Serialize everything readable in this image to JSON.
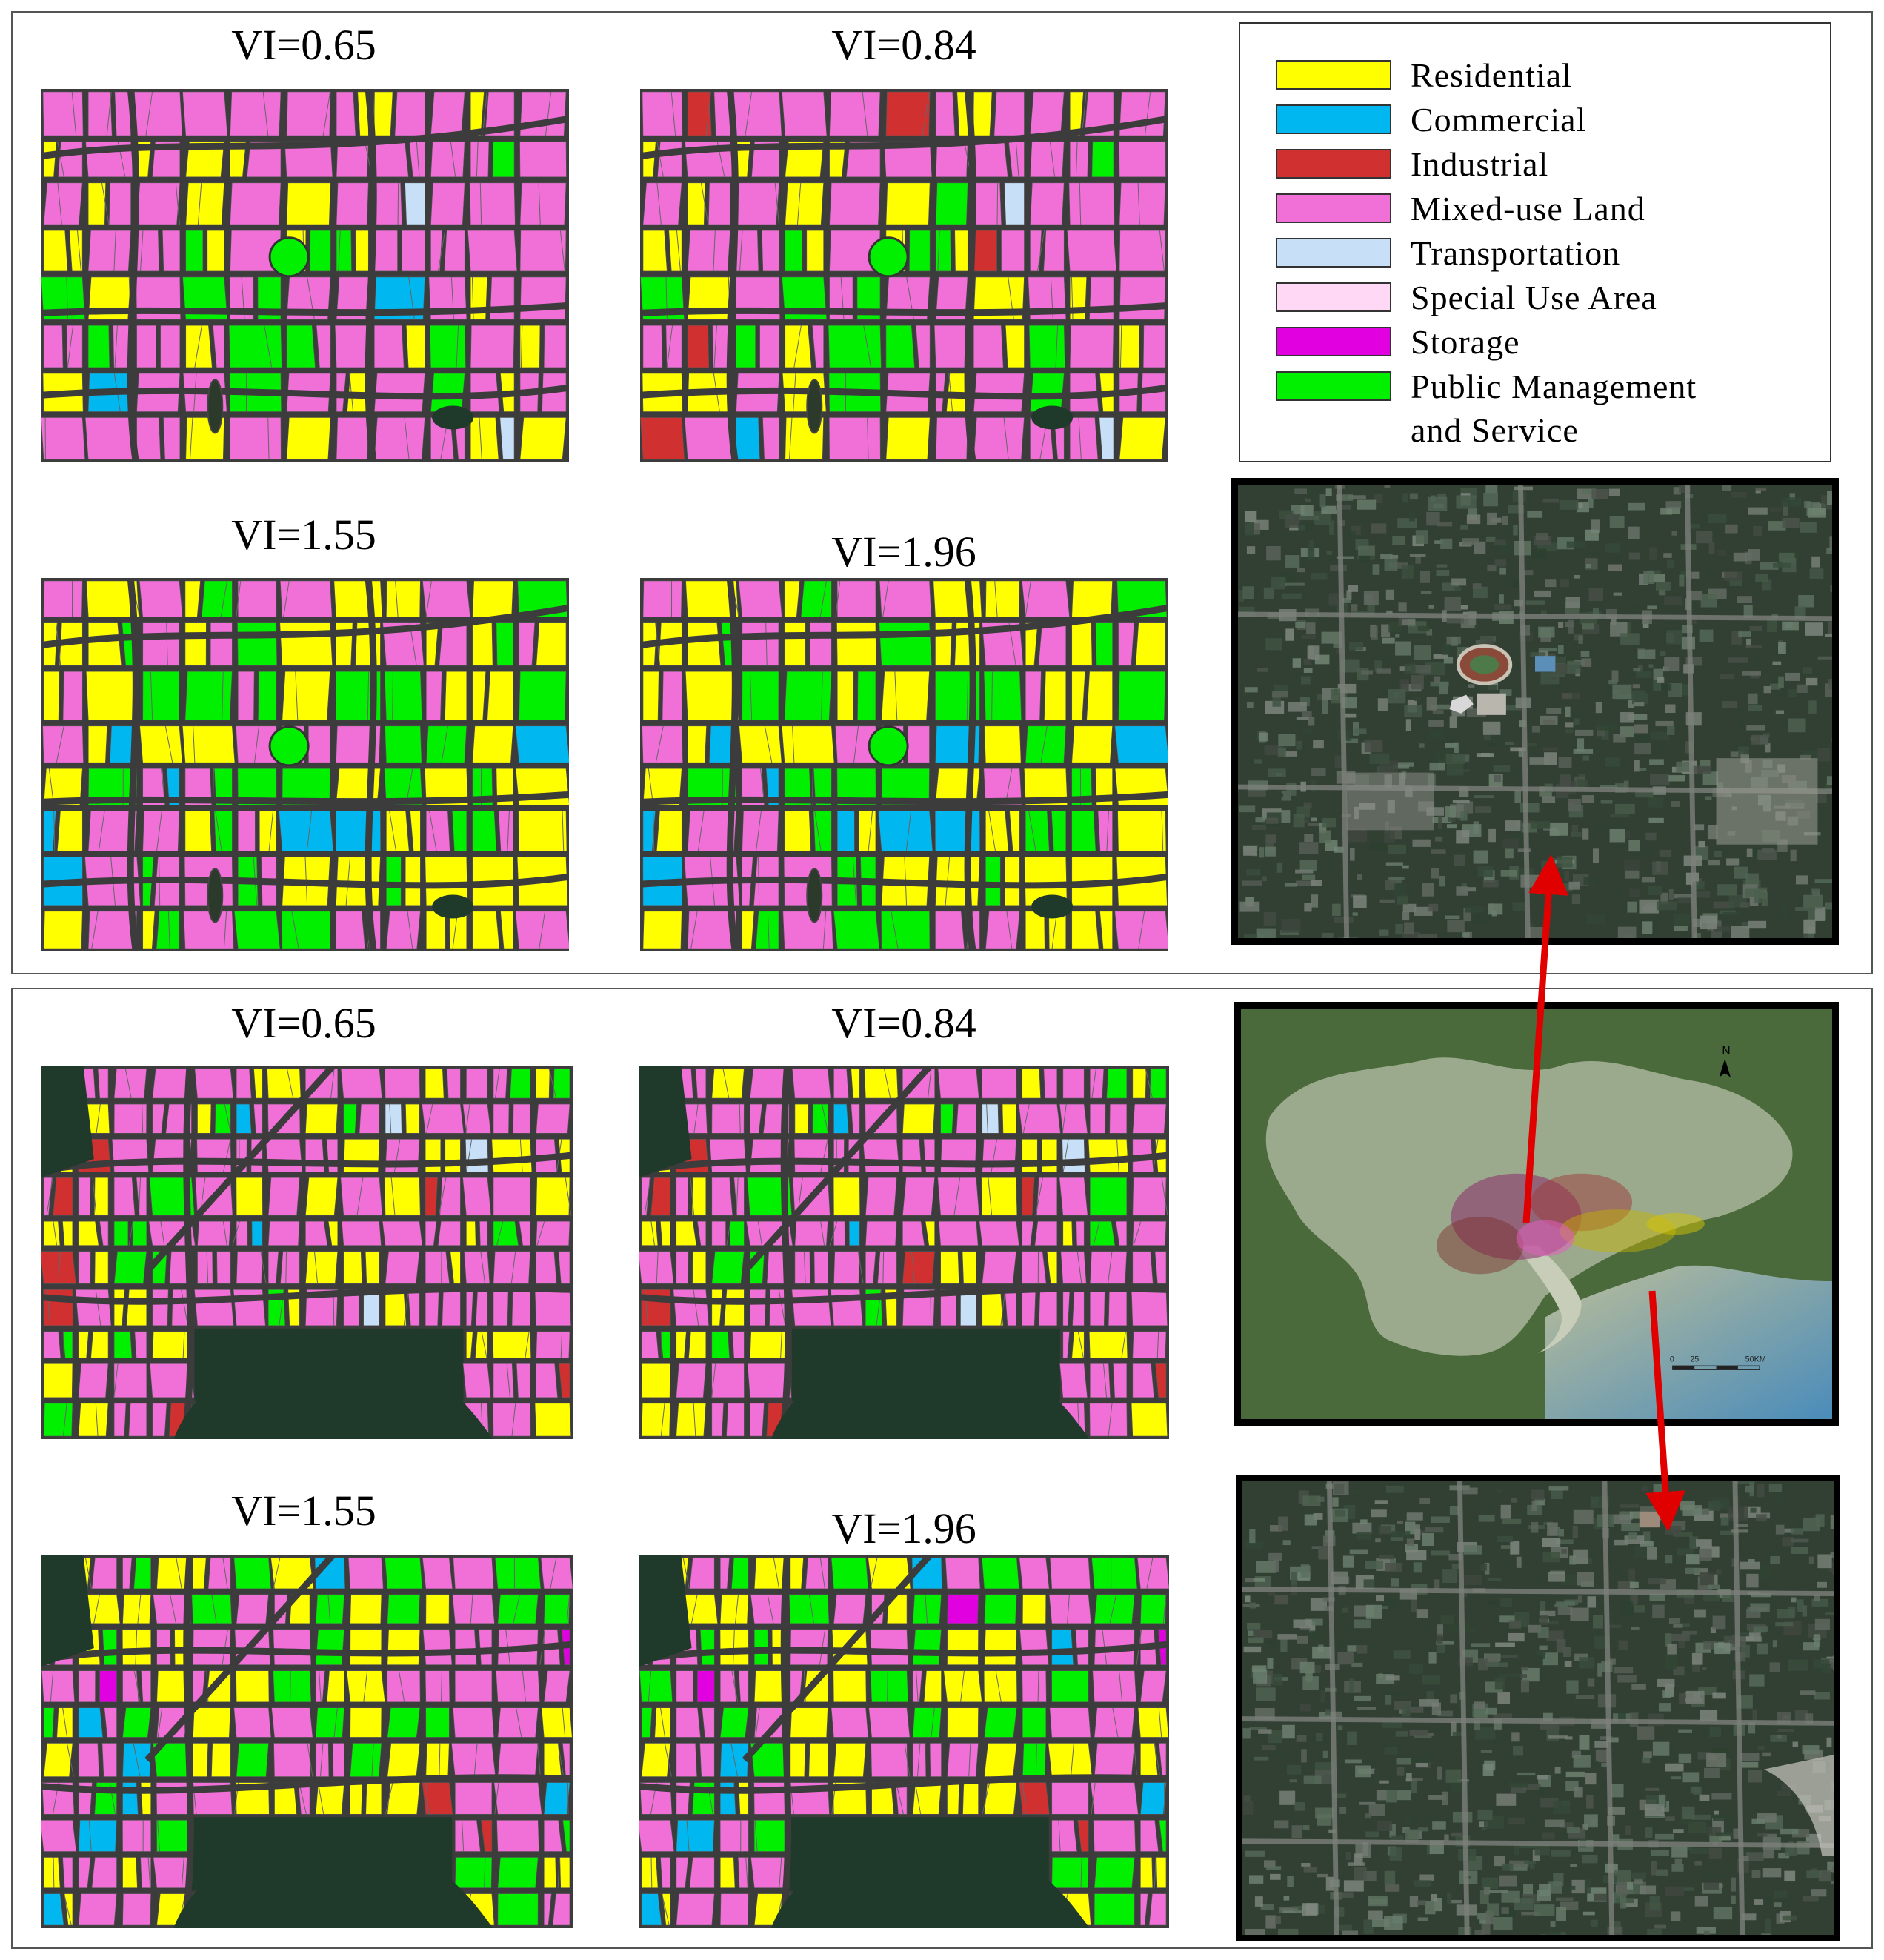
{
  "top_panel": {
    "maps": [
      {
        "label": "VI=0.65"
      },
      {
        "label": "VI=0.84"
      },
      {
        "label": "VI=1.55"
      },
      {
        "label": "VI=1.96"
      }
    ]
  },
  "bottom_panel": {
    "maps": [
      {
        "label": "VI=0.65"
      },
      {
        "label": "VI=0.84"
      },
      {
        "label": "VI=1.55"
      },
      {
        "label": "VI=1.96"
      }
    ]
  },
  "legend": {
    "items": [
      {
        "label": "Residential",
        "color": "#ffff00"
      },
      {
        "label": "Commercial",
        "color": "#00b7ef"
      },
      {
        "label": "Industrial",
        "color": "#d03030"
      },
      {
        "label": "Mixed-use Land",
        "color": "#f070d8"
      },
      {
        "label": "Transportation",
        "color": "#c7e0f8"
      },
      {
        "label": "Special Use Area",
        "color": "#ffd8f6"
      },
      {
        "label": "Storage",
        "color": "#e000e0"
      },
      {
        "label": "Public Management",
        "label_line2": "and Service",
        "color": "#00f000"
      }
    ]
  },
  "overview_map": {
    "north_label": "N",
    "scale_labels": [
      "0",
      "25",
      "50KM"
    ]
  },
  "colors": {
    "road": "#3c3c3c",
    "arrow": "#e00000"
  }
}
